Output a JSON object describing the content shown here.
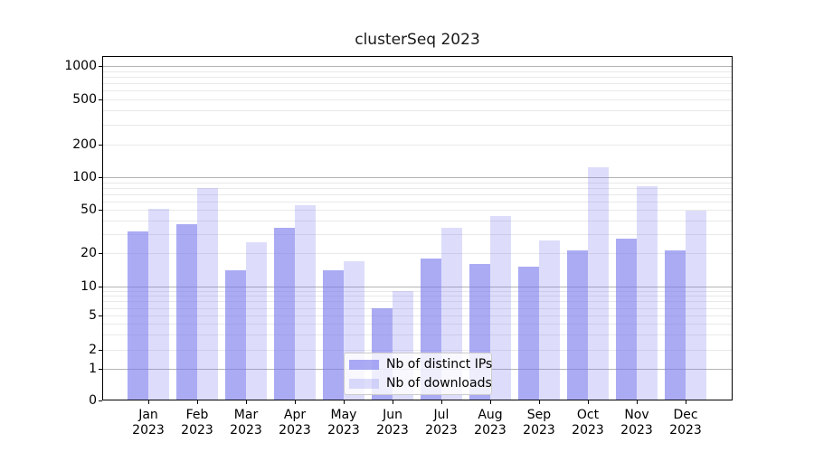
{
  "chart_data": {
    "type": "bar",
    "title": "clusterSeq 2023",
    "categories": [
      "Jan",
      "Feb",
      "Mar",
      "Apr",
      "May",
      "Jun",
      "Jul",
      "Aug",
      "Sep",
      "Oct",
      "Nov",
      "Dec"
    ],
    "x_tick_year": "2023",
    "series": [
      {
        "name": "Nb of distinct IPs",
        "color": "rgba(119,119,238,0.62)",
        "values": [
          32,
          37,
          14,
          34,
          14,
          6,
          18,
          16,
          15,
          21,
          27,
          21
        ]
      },
      {
        "name": "Nb of downloads",
        "color": "rgba(119,119,238,0.25)",
        "values": [
          51,
          80,
          25,
          55,
          17,
          9,
          34,
          44,
          26,
          124,
          83,
          49
        ]
      }
    ],
    "y_axis": {
      "scale": "symlog",
      "ticks": [
        0,
        1,
        2,
        5,
        10,
        20,
        50,
        100,
        200,
        500,
        1000
      ],
      "range": [
        0,
        1250
      ]
    },
    "grid": {
      "horizontal": true,
      "minor": true
    },
    "legend": {
      "position": "lower center"
    }
  }
}
